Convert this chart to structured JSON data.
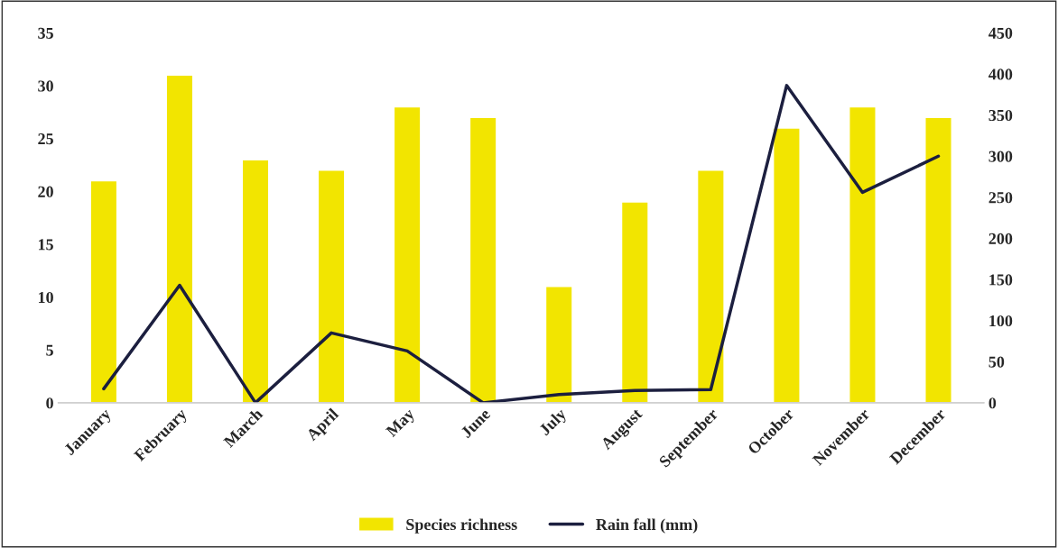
{
  "chart_data": {
    "type": "bar",
    "categories": [
      "January",
      "February",
      "March",
      "April",
      "May",
      "June",
      "July",
      "August",
      "September",
      "October",
      "November",
      "December"
    ],
    "series": [
      {
        "name": "Species richness",
        "color": "#f2e500",
        "values": [
          21,
          31,
          23,
          22,
          28,
          27,
          11,
          19,
          22,
          26,
          28,
          27
        ]
      },
      {
        "name": "Rain fall (mm)",
        "type": "line",
        "axis": "y2",
        "color": "#1c1f3f",
        "values": [
          17,
          143,
          0,
          85,
          63,
          0,
          10,
          15,
          16,
          386,
          256,
          300
        ]
      }
    ],
    "ylim": [
      0,
      35
    ],
    "yticks": [
      0,
      5,
      10,
      15,
      20,
      25,
      30,
      35
    ],
    "y2lim": [
      0,
      450
    ],
    "y2ticks": [
      0,
      50,
      100,
      150,
      200,
      250,
      300,
      350,
      400,
      450
    ],
    "legend": "bottom",
    "grid": false
  }
}
